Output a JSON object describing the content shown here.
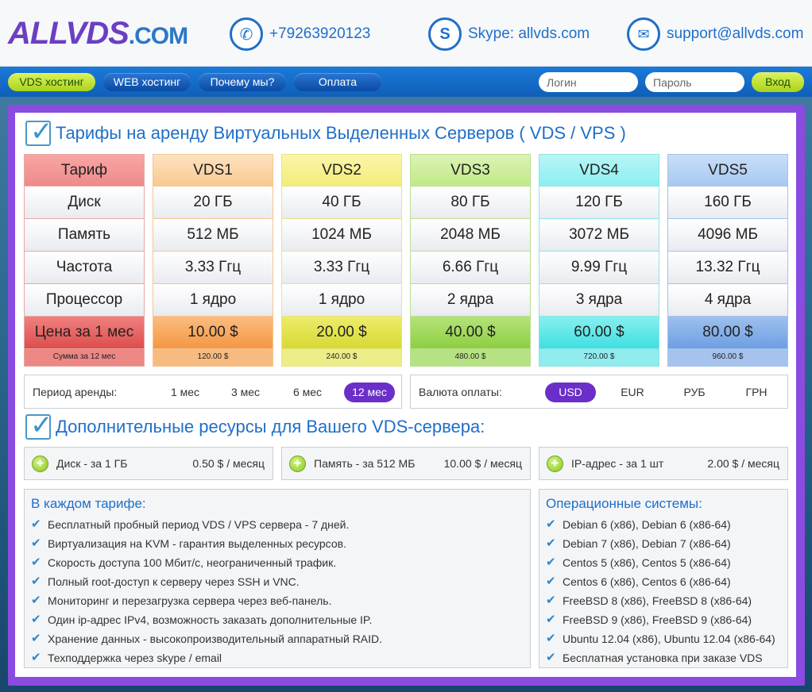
{
  "header": {
    "logo_part1": "ALLVDS",
    "logo_part2": ".COM",
    "phone": "+79263920123",
    "skype": "Skype: allvds.com",
    "email": "support@allvds.com"
  },
  "nav": {
    "items": [
      "VDS хостинг",
      "WEB хостинг",
      "Почему мы?",
      "Оплата"
    ],
    "login_placeholder": "Логин",
    "password_placeholder": "Пароль",
    "submit": "Вход"
  },
  "tariffs": {
    "title": "Тарифы на аренду Виртуальных Выделенных Серверов ( VDS / VPS )",
    "row_labels": [
      "Тариф",
      "Диск",
      "Память",
      "Частота",
      "Процессор",
      "Цена за 1 мес",
      "Сумма за 12 мес"
    ],
    "plans": [
      {
        "name": "VDS1",
        "disk": "20 ГБ",
        "memory": "512 МБ",
        "freq": "3.33 Ггц",
        "cpu": "1 ядро",
        "price": "10.00 $",
        "sum": "120.00 $"
      },
      {
        "name": "VDS2",
        "disk": "40 ГБ",
        "memory": "1024 МБ",
        "freq": "3.33 Ггц",
        "cpu": "1 ядро",
        "price": "20.00 $",
        "sum": "240.00 $"
      },
      {
        "name": "VDS3",
        "disk": "80 ГБ",
        "memory": "2048 МБ",
        "freq": "6.66 Ггц",
        "cpu": "2 ядра",
        "price": "40.00 $",
        "sum": "480.00 $"
      },
      {
        "name": "VDS4",
        "disk": "120 ГБ",
        "memory": "3072 МБ",
        "freq": "9.99 Ггц",
        "cpu": "3 ядра",
        "price": "60.00 $",
        "sum": "720.00 $"
      },
      {
        "name": "VDS5",
        "disk": "160 ГБ",
        "memory": "4096 МБ",
        "freq": "13.32 Ггц",
        "cpu": "4 ядра",
        "price": "80.00 $",
        "sum": "960.00 $"
      }
    ]
  },
  "period": {
    "label": "Период аренды:",
    "options": [
      "1 мес",
      "3 мес",
      "6 мес",
      "12 мес"
    ],
    "selected": "12 мес"
  },
  "currency": {
    "label": "Валюта оплаты:",
    "options": [
      "USD",
      "EUR",
      "РУБ",
      "ГРН"
    ],
    "selected": "USD"
  },
  "resources": {
    "title": "Дополнительные ресурсы для Вашего VDS-сервера:",
    "items": [
      {
        "label": "Диск - за 1 ГБ",
        "price": "0.50 $ / месяц"
      },
      {
        "label": "Память - за 512 МБ",
        "price": "10.00 $ / месяц"
      },
      {
        "label": "IP-адрес - за 1 шт",
        "price": "2.00 $ / месяц"
      }
    ]
  },
  "features": {
    "title": "В каждом тарифе:",
    "items": [
      "Бесплатный пробный период VDS / VPS сервера - 7 дней.",
      "Виртуализация на KVM - гарантия выделенных ресурсов.",
      "Скорость доступа 100 Мбит/с, неограниченный трафик.",
      "Полный root-доступ к серверу через SSH и VNC.",
      "Мониторинг и перезагрузка сервера через веб-панель.",
      "Один ip-адрес IPv4, возможность заказать дополнительные IP.",
      "Хранение данных - высокопроизводительный аппаратный RAID.",
      "Техподдержка через skype / email"
    ]
  },
  "os": {
    "title": "Операционные системы:",
    "items": [
      "Debian 6 (x86), Debian 6 (x86-64)",
      "Debian 7 (x86), Debian 7 (x86-64)",
      "Centos 5 (x86), Centos 5 (x86-64)",
      "Centos 6 (x86), Centos 6 (x86-64)",
      "FreeBSD 8 (x86), FreeBSD 8 (x86-64)",
      "FreeBSD 9 (x86), FreeBSD 9 (x86-64)",
      "Ubuntu 12.04 (x86), Ubuntu 12.04 (x86-64)",
      "Бесплатная установка при заказе VDS"
    ]
  },
  "colors": {
    "accent_blue": "#1f6fc9",
    "frame_purple": "#8a4be0",
    "selected_purple": "#6a2fc9",
    "active_green": "#a9d31a"
  }
}
